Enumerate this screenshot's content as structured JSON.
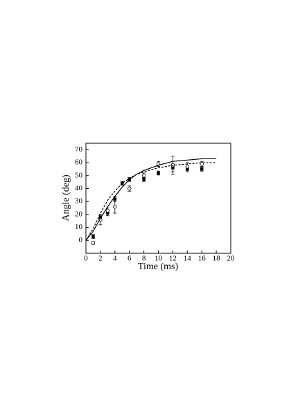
{
  "chart_data": {
    "type": "scatter",
    "x_label": "Time (ms)",
    "y_label": "Angle (deg)",
    "xlim": [
      0,
      20
    ],
    "ylim": [
      -10,
      75
    ],
    "xticks": [
      0,
      2,
      4,
      6,
      8,
      10,
      12,
      14,
      16,
      18,
      20
    ],
    "yticks": [
      0,
      10,
      20,
      30,
      40,
      50,
      60,
      70
    ],
    "series": [
      {
        "kind": "points",
        "marker": "square",
        "color": "#000000",
        "x": [
          1,
          2,
          3,
          4,
          5,
          6,
          8,
          10,
          12,
          14,
          16
        ],
        "values": [
          3,
          18,
          21,
          32,
          44,
          47,
          47,
          52,
          56,
          55,
          55
        ],
        "errors": [
          1.5,
          2,
          2,
          2,
          1.5,
          1.5,
          1.5,
          1.5,
          3,
          2,
          1.5
        ]
      },
      {
        "kind": "points",
        "marker": "circle",
        "color": "#000000",
        "x": [
          1,
          2,
          3,
          4,
          6,
          8,
          10,
          12,
          14,
          16
        ],
        "values": [
          -2,
          16,
          23,
          26,
          40,
          50,
          59,
          58,
          57,
          59
        ],
        "errors": [
          1,
          4,
          2,
          5,
          2,
          2,
          2,
          7,
          3,
          2
        ]
      },
      {
        "kind": "line",
        "dash": false,
        "color": "#000000",
        "x": [
          0,
          1,
          2,
          3,
          4,
          5,
          6,
          7,
          8,
          10,
          12,
          14,
          16,
          18
        ],
        "values": [
          0,
          7,
          17,
          26,
          34,
          41,
          47,
          51,
          54,
          58,
          61,
          62,
          63,
          63
        ]
      },
      {
        "kind": "line",
        "dash": true,
        "color": "#000000",
        "x": [
          0,
          1,
          2,
          3,
          4,
          5,
          6,
          7,
          8,
          10,
          12,
          14,
          16,
          18
        ],
        "values": [
          0,
          9,
          21,
          31,
          38,
          44,
          48,
          51,
          53,
          56,
          58,
          59,
          60,
          60
        ]
      }
    ]
  }
}
